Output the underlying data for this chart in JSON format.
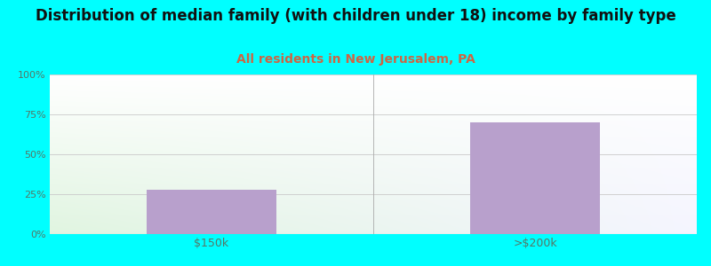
{
  "title": "Distribution of median family (with children under 18) income by family type",
  "subtitle": "All residents in New Jerusalem, PA",
  "categories": [
    "$150k",
    ">$200k"
  ],
  "values": [
    28,
    70
  ],
  "bar_color": "#b8a0cc",
  "title_fontsize": 12,
  "subtitle_fontsize": 10,
  "subtitle_color": "#cc6644",
  "tick_label_color": "#557766",
  "background_outer": "#00ffff",
  "ylim": [
    0,
    100
  ],
  "yticks": [
    0,
    25,
    50,
    75,
    100
  ],
  "ytick_labels": [
    "0%",
    "25%",
    "50%",
    "75%",
    "100%"
  ],
  "grid_color": "#cccccc",
  "separator_color": "#aaaaaa"
}
